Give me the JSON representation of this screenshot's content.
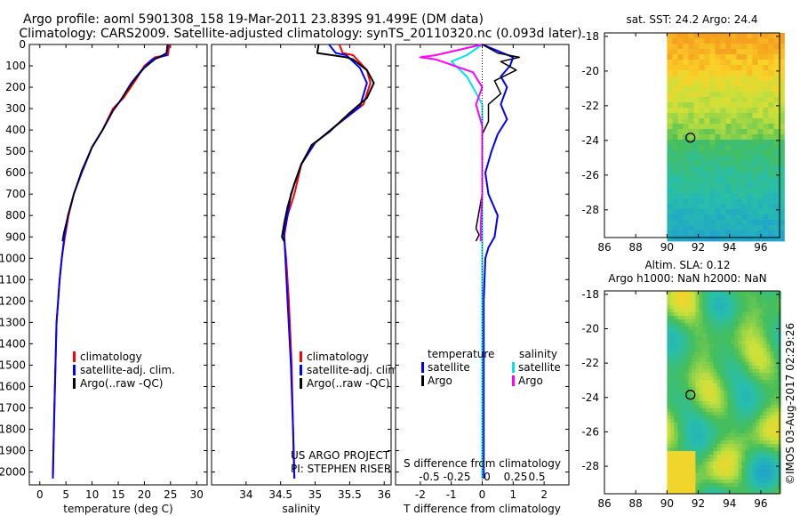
{
  "header": {
    "line1": "Argo profile: aoml 5901308_158 19-Mar-2011 23.839S 91.499E (DM data)",
    "line2": "Climatology: CARS2009. Satellite-adjusted climatology: synTS_20110320.nc (0.093d later)"
  },
  "colors": {
    "climatology": "#ff0000",
    "satellite": "#0000ff",
    "argo": "#000000",
    "sal_satellite": "#00e5e5",
    "sal_argo": "#ff00ff"
  },
  "depth_axis": {
    "ticks": [
      0,
      100,
      200,
      300,
      400,
      500,
      600,
      700,
      800,
      900,
      1000,
      1100,
      1200,
      1300,
      1400,
      1500,
      1600,
      1700,
      1800,
      1900,
      2000
    ],
    "range": [
      0,
      2060
    ]
  },
  "chart_data": [
    {
      "type": "line",
      "id": "temperature",
      "xlabel": "temperature (deg C)",
      "ylabel": "",
      "xlim": [
        -2,
        32
      ],
      "xticks": [
        0,
        5,
        10,
        15,
        20,
        25,
        30
      ],
      "ylim": [
        2060,
        0
      ],
      "legend": [
        "climatology",
        "satellite-adj. clim.",
        "Argo(..raw -QC)"
      ],
      "series": [
        {
          "name": "climatology",
          "color": "#ff0000",
          "width": 2,
          "points": [
            [
              24.8,
              0
            ],
            [
              24.5,
              50
            ],
            [
              22,
              60
            ],
            [
              20,
              100
            ],
            [
              18.5,
              160
            ],
            [
              16,
              250
            ],
            [
              14,
              300
            ],
            [
              12,
              400
            ],
            [
              10,
              480
            ],
            [
              8,
              600
            ],
            [
              6.5,
              700
            ],
            [
              5.5,
              800
            ],
            [
              4.8,
              900
            ],
            [
              4.2,
              1000
            ],
            [
              3.8,
              1100
            ],
            [
              3.5,
              1200
            ],
            [
              3.2,
              1300
            ],
            [
              3,
              1500
            ],
            [
              2.8,
              1700
            ],
            [
              2.6,
              1900
            ],
            [
              2.5,
              2030
            ]
          ]
        },
        {
          "name": "satellite-adj. clim.",
          "color": "#0000ff",
          "width": 2,
          "points": [
            [
              24.5,
              0
            ],
            [
              24.2,
              50
            ],
            [
              21.5,
              70
            ],
            [
              19.5,
              120
            ],
            [
              17.5,
              180
            ],
            [
              15.5,
              260
            ],
            [
              14,
              310
            ],
            [
              12,
              400
            ],
            [
              10,
              480
            ],
            [
              8,
              600
            ],
            [
              6.5,
              700
            ],
            [
              5.4,
              800
            ],
            [
              4.7,
              900
            ],
            [
              4.2,
              1000
            ],
            [
              3.8,
              1100
            ],
            [
              3.5,
              1200
            ],
            [
              3.2,
              1300
            ],
            [
              3,
              1500
            ],
            [
              2.8,
              1700
            ],
            [
              2.6,
              1900
            ],
            [
              2.5,
              2030
            ]
          ]
        },
        {
          "name": "Argo(..raw -QC)",
          "color": "#000000",
          "width": 1.5,
          "points": [
            [
              24.4,
              0
            ],
            [
              24.2,
              40
            ],
            [
              22,
              70
            ],
            [
              20,
              110
            ],
            [
              18,
              170
            ],
            [
              16,
              240
            ],
            [
              14,
              310
            ],
            [
              12,
              400
            ],
            [
              10,
              480
            ],
            [
              8,
              590
            ],
            [
              6.5,
              700
            ],
            [
              5.4,
              800
            ],
            [
              4.6,
              880
            ],
            [
              4.3,
              920
            ]
          ]
        }
      ]
    },
    {
      "type": "line",
      "id": "salinity",
      "xlabel": "salinity",
      "ylabel": "",
      "xlim": [
        33.5,
        36.1
      ],
      "xticks": [
        34,
        34.5,
        35,
        35.5,
        36
      ],
      "ylim": [
        2060,
        0
      ],
      "legend": [
        "climatology",
        "satellite-adj. clim.",
        "Argo(..raw -QC)"
      ],
      "series": [
        {
          "name": "climatology",
          "color": "#ff0000",
          "width": 2,
          "points": [
            [
              35.35,
              0
            ],
            [
              35.4,
              40
            ],
            [
              35.55,
              50
            ],
            [
              35.75,
              120
            ],
            [
              35.8,
              180
            ],
            [
              35.7,
              280
            ],
            [
              35.3,
              380
            ],
            [
              35,
              460
            ],
            [
              34.8,
              560
            ],
            [
              34.7,
              700
            ],
            [
              34.6,
              800
            ],
            [
              34.55,
              900
            ],
            [
              34.58,
              1000
            ],
            [
              34.62,
              1200
            ],
            [
              34.66,
              1500
            ],
            [
              34.68,
              1800
            ],
            [
              34.7,
              2030
            ]
          ]
        },
        {
          "name": "satellite-adj. clim.",
          "color": "#0000ff",
          "width": 2,
          "points": [
            [
              35.2,
              0
            ],
            [
              35.3,
              40
            ],
            [
              35.45,
              50
            ],
            [
              35.65,
              110
            ],
            [
              35.75,
              180
            ],
            [
              35.65,
              290
            ],
            [
              35.3,
              380
            ],
            [
              35,
              460
            ],
            [
              34.8,
              560
            ],
            [
              34.65,
              700
            ],
            [
              34.6,
              800
            ],
            [
              34.55,
              880
            ],
            [
              34.57,
              1000
            ],
            [
              34.6,
              1200
            ],
            [
              34.65,
              1500
            ],
            [
              34.68,
              1800
            ],
            [
              34.7,
              2030
            ]
          ]
        },
        {
          "name": "Argo(..raw -QC)",
          "color": "#000000",
          "width": 2,
          "points": [
            [
              35.05,
              0
            ],
            [
              35.03,
              40
            ],
            [
              35.45,
              60
            ],
            [
              35.55,
              70
            ],
            [
              35.75,
              120
            ],
            [
              35.85,
              180
            ],
            [
              35.75,
              250
            ],
            [
              35.5,
              320
            ],
            [
              35.2,
              410
            ],
            [
              34.95,
              470
            ],
            [
              34.8,
              560
            ],
            [
              34.7,
              650
            ],
            [
              34.6,
              760
            ],
            [
              34.55,
              840
            ],
            [
              34.52,
              900
            ],
            [
              34.55,
              920
            ]
          ]
        }
      ]
    },
    {
      "type": "line",
      "id": "difference",
      "xlabel": "T difference from climatology",
      "xlabel2": "S difference from climatology",
      "ylabel": "",
      "xlim": [
        -2.8,
        2.8
      ],
      "xticks": [
        -2,
        -1,
        0,
        1,
        2
      ],
      "xticks_s": [
        -0.5,
        -0.25,
        0,
        0.25,
        0.5
      ],
      "ylim": [
        2060,
        0
      ],
      "legend_headers": [
        "temperature",
        "salinity"
      ],
      "legend": [
        "satellite",
        "Argo",
        "satellite",
        "Argo"
      ],
      "series": [
        {
          "name": "temperature satellite",
          "color": "#0000ff",
          "width": 2,
          "points": [
            [
              0,
              0
            ],
            [
              0.5,
              30
            ],
            [
              1,
              60
            ],
            [
              0.9,
              100
            ],
            [
              0.6,
              150
            ],
            [
              0.8,
              200
            ],
            [
              0.6,
              280
            ],
            [
              0.8,
              350
            ],
            [
              0.5,
              420
            ],
            [
              0.3,
              500
            ],
            [
              0.1,
              600
            ],
            [
              0.2,
              700
            ],
            [
              0.5,
              800
            ],
            [
              0.4,
              900
            ],
            [
              0.2,
              950
            ],
            [
              0.1,
              1000
            ],
            [
              0.05,
              1200
            ],
            [
              0.05,
              1500
            ],
            [
              0.05,
              1800
            ],
            [
              0.05,
              2030
            ]
          ]
        },
        {
          "name": "temperature Argo",
          "color": "#000000",
          "width": 1.5,
          "points": [
            [
              0,
              0
            ],
            [
              0.5,
              40
            ],
            [
              1.2,
              60
            ],
            [
              0.6,
              80
            ],
            [
              1.1,
              120
            ],
            [
              0.4,
              170
            ],
            [
              0.6,
              230
            ],
            [
              0.2,
              280
            ],
            [
              0.2,
              360
            ],
            [
              0,
              420
            ],
            [
              0,
              500
            ],
            [
              0,
              600
            ],
            [
              0,
              700
            ],
            [
              -0.2,
              860
            ],
            [
              -0.1,
              890
            ],
            [
              -0.2,
              920
            ]
          ]
        },
        {
          "name": "salinity satellite",
          "color": "#00e5e5",
          "width": 2,
          "points": [
            [
              0,
              0
            ],
            [
              -0.5,
              50
            ],
            [
              -1,
              80
            ],
            [
              -0.5,
              150
            ],
            [
              -0.3,
              200
            ],
            [
              0,
              280
            ],
            [
              0,
              400
            ],
            [
              0,
              600
            ],
            [
              0,
              800
            ],
            [
              0,
              1000
            ],
            [
              0,
              1200
            ],
            [
              0,
              1500
            ],
            [
              0,
              1800
            ],
            [
              0,
              2030
            ]
          ]
        },
        {
          "name": "salinity Argo",
          "color": "#ff00ff",
          "width": 2,
          "points": [
            [
              0,
              0
            ],
            [
              -1.5,
              50
            ],
            [
              -2,
              60
            ],
            [
              -1.5,
              70
            ],
            [
              -0.3,
              130
            ],
            [
              0,
              200
            ],
            [
              -0.2,
              280
            ],
            [
              0,
              380
            ],
            [
              0,
              500
            ],
            [
              0,
              600
            ],
            [
              0,
              700
            ],
            [
              -0.05,
              850
            ],
            [
              -0.05,
              920
            ]
          ]
        }
      ]
    },
    {
      "type": "heatmap",
      "id": "sst_map",
      "title": "sat. SST: 24.2 Argo: 24.4",
      "xlim": [
        86,
        97.2
      ],
      "ylim": [
        -29.6,
        -17.8
      ],
      "xticks": [
        86,
        88,
        90,
        92,
        94,
        96
      ],
      "yticks": [
        -18,
        -20,
        -22,
        -24,
        -26,
        -28
      ],
      "data_xmin": 90,
      "marker": [
        91.5,
        -23.84
      ]
    },
    {
      "type": "heatmap",
      "id": "sla_map",
      "title": "Altim. SLA: 0.12",
      "subtitle": "Argo h1000: NaN h2000: NaN",
      "xlim": [
        86,
        97.2
      ],
      "ylim": [
        -29.6,
        -17.8
      ],
      "xticks": [
        86,
        88,
        90,
        92,
        94,
        96
      ],
      "yticks": [
        -18,
        -20,
        -22,
        -24,
        -26,
        -28
      ],
      "data_xmin": 90,
      "marker": [
        91.5,
        -23.84
      ]
    }
  ],
  "credits": {
    "project": "US ARGO PROJECT",
    "pi": "PI: STEPHEN RISER"
  },
  "timestamp": "©IMOS 03-Aug-2017 02:29:26"
}
